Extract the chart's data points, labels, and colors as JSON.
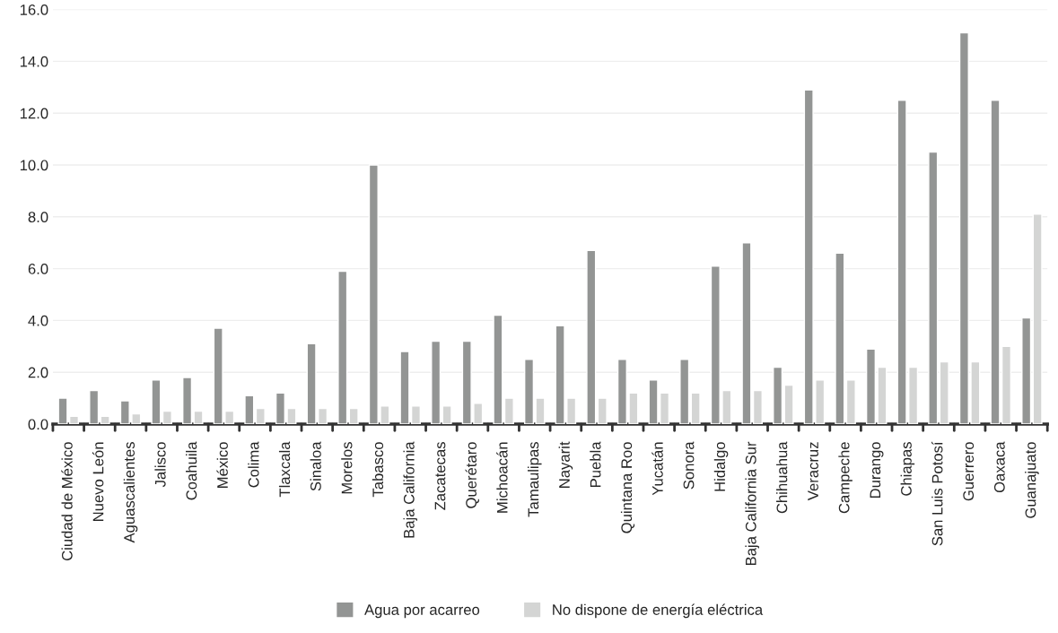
{
  "chart_data": {
    "type": "bar",
    "categories": [
      "Ciudad de México",
      "Nuevo León",
      "Aguascalientes",
      "Jalisco",
      "Coahuila",
      "México",
      "Colima",
      "Tlaxcala",
      "Sinaloa",
      "Morelos",
      "Tabasco",
      "Baja California",
      "Zacatecas",
      "Querétaro",
      "Michoacán",
      "Tamaulipas",
      "Nayarit",
      "Puebla",
      "Quintana Roo",
      "Yucatán",
      "Sonora",
      "Hidalgo",
      "Baja California Sur",
      "Chihuahua",
      "Veracruz",
      "Campeche",
      "Durango",
      "Chiapas",
      "San Luis Potosí",
      "Guerrero",
      "Oaxaca",
      "Guanajuato"
    ],
    "series": [
      {
        "name": "Agua por acarreo",
        "color": "#939594",
        "values": [
          1.0,
          1.3,
          0.9,
          1.7,
          1.8,
          3.7,
          1.1,
          1.2,
          3.1,
          5.9,
          10.0,
          2.8,
          3.2,
          3.2,
          4.2,
          2.5,
          3.8,
          6.7,
          2.5,
          1.7,
          2.5,
          6.1,
          7.0,
          2.2,
          12.9,
          6.6,
          2.9,
          12.5,
          10.5,
          15.1,
          12.5,
          4.1
        ]
      },
      {
        "name": "No dispone de energía eléctrica",
        "color": "#d4d5d4",
        "values": [
          0.3,
          0.3,
          0.4,
          0.5,
          0.5,
          0.5,
          0.6,
          0.6,
          0.6,
          0.6,
          0.7,
          0.7,
          0.7,
          0.8,
          1.0,
          1.0,
          1.0,
          1.0,
          1.2,
          1.2,
          1.2,
          1.3,
          1.3,
          1.5,
          1.7,
          1.7,
          2.2,
          2.2,
          2.4,
          2.4,
          3.0,
          8.1
        ]
      }
    ],
    "ylim": [
      0,
      16
    ],
    "yticks": [
      {
        "value": 0,
        "label": "0.0"
      },
      {
        "value": 2,
        "label": "2.0"
      },
      {
        "value": 4,
        "label": "4.0"
      },
      {
        "value": 6,
        "label": "6.0"
      },
      {
        "value": 8,
        "label": "8.0"
      },
      {
        "value": 10,
        "label": "10.0"
      },
      {
        "value": 12,
        "label": "12.0"
      },
      {
        "value": 14,
        "label": "14.0"
      },
      {
        "value": 16,
        "label": "16.0"
      }
    ],
    "grid": "y",
    "legend": "bottom"
  }
}
